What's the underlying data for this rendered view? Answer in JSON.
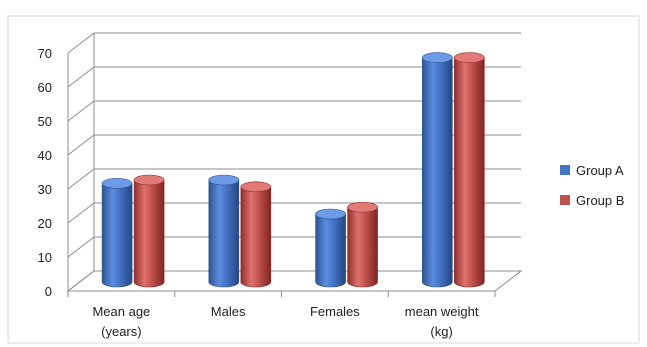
{
  "chart_data": {
    "type": "bar",
    "style": "3d-cylinder",
    "categories": [
      [
        "Mean age",
        "(years)"
      ],
      [
        "Males"
      ],
      [
        "Females"
      ],
      [
        "mean weight",
        "(kg)"
      ]
    ],
    "series": [
      {
        "name": "Group A",
        "color": "#4472C4",
        "values": [
          29,
          30,
          20,
          66
        ]
      },
      {
        "name": "Group B",
        "color": "#C0504D",
        "values": [
          30,
          28,
          22,
          66
        ]
      }
    ],
    "ylim": [
      0,
      70
    ],
    "yticks": [
      0,
      10,
      20,
      30,
      40,
      50,
      60,
      70
    ],
    "grid": true,
    "legend_position": "right"
  }
}
